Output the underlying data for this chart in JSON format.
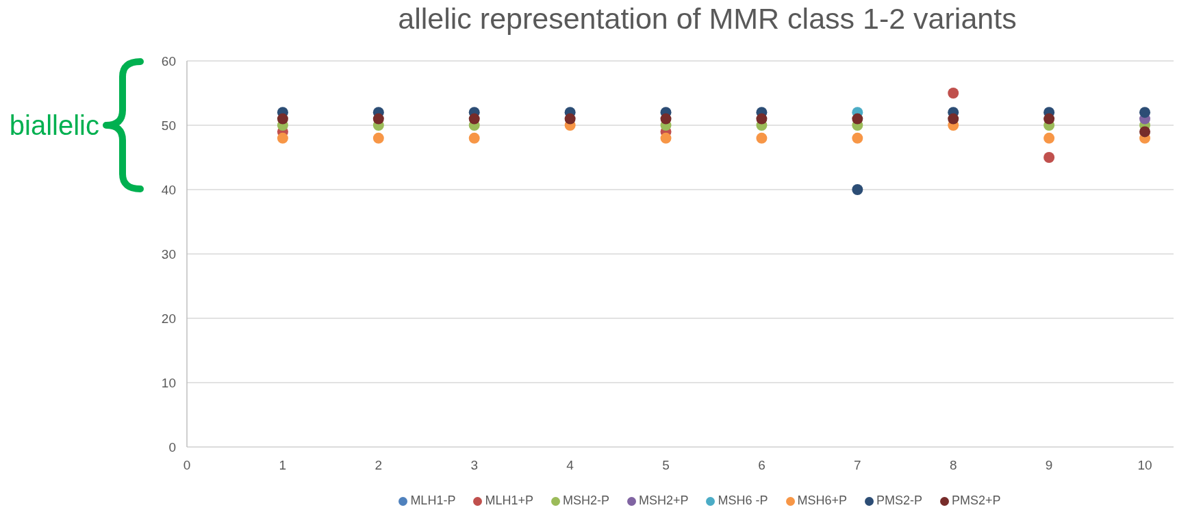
{
  "chart_data": {
    "type": "scatter",
    "title": "allelic representation of MMR class 1-2 variants",
    "annotations": [
      "biallelic"
    ],
    "x": [
      1,
      2,
      3,
      4,
      5,
      6,
      7,
      8,
      9,
      10
    ],
    "xlim": [
      0,
      10.3
    ],
    "xticks": [
      0,
      1,
      2,
      3,
      4,
      5,
      6,
      7,
      8,
      9,
      10
    ],
    "ylim": [
      0,
      60
    ],
    "yticks": [
      0,
      10,
      20,
      30,
      40,
      50,
      60
    ],
    "grid": "y",
    "legend": "bottom",
    "marker": "circle",
    "series": [
      {
        "name": "MLH1-P",
        "color": "#4f81bd",
        "values": [
          null,
          null,
          null,
          null,
          null,
          null,
          null,
          null,
          null,
          null
        ]
      },
      {
        "name": "MLH1+P",
        "color": "#c0504d",
        "values": [
          49,
          null,
          null,
          null,
          49,
          null,
          null,
          55,
          45,
          null
        ]
      },
      {
        "name": "MSH2-P",
        "color": "#9bbb59",
        "values": [
          50,
          50,
          50,
          null,
          50,
          50,
          50,
          null,
          50,
          50
        ]
      },
      {
        "name": "MSH2+P",
        "color": "#8064a2",
        "values": [
          null,
          null,
          null,
          null,
          null,
          null,
          null,
          null,
          null,
          51
        ]
      },
      {
        "name": "MSH6 -P",
        "color": "#4bacc6",
        "values": [
          null,
          null,
          null,
          null,
          null,
          null,
          52,
          null,
          null,
          null
        ]
      },
      {
        "name": "MSH6+P",
        "color": "#f79646",
        "values": [
          48,
          48,
          48,
          50,
          48,
          48,
          48,
          50,
          48,
          48
        ]
      },
      {
        "name": "PMS2-P",
        "color": "#2c4d75",
        "values": [
          52,
          52,
          52,
          52,
          52,
          52,
          40,
          52,
          52,
          52
        ]
      },
      {
        "name": "PMS2+P",
        "color": "#772c2a",
        "values": [
          51,
          51,
          51,
          51,
          51,
          51,
          51,
          51,
          51,
          49
        ]
      }
    ]
  }
}
